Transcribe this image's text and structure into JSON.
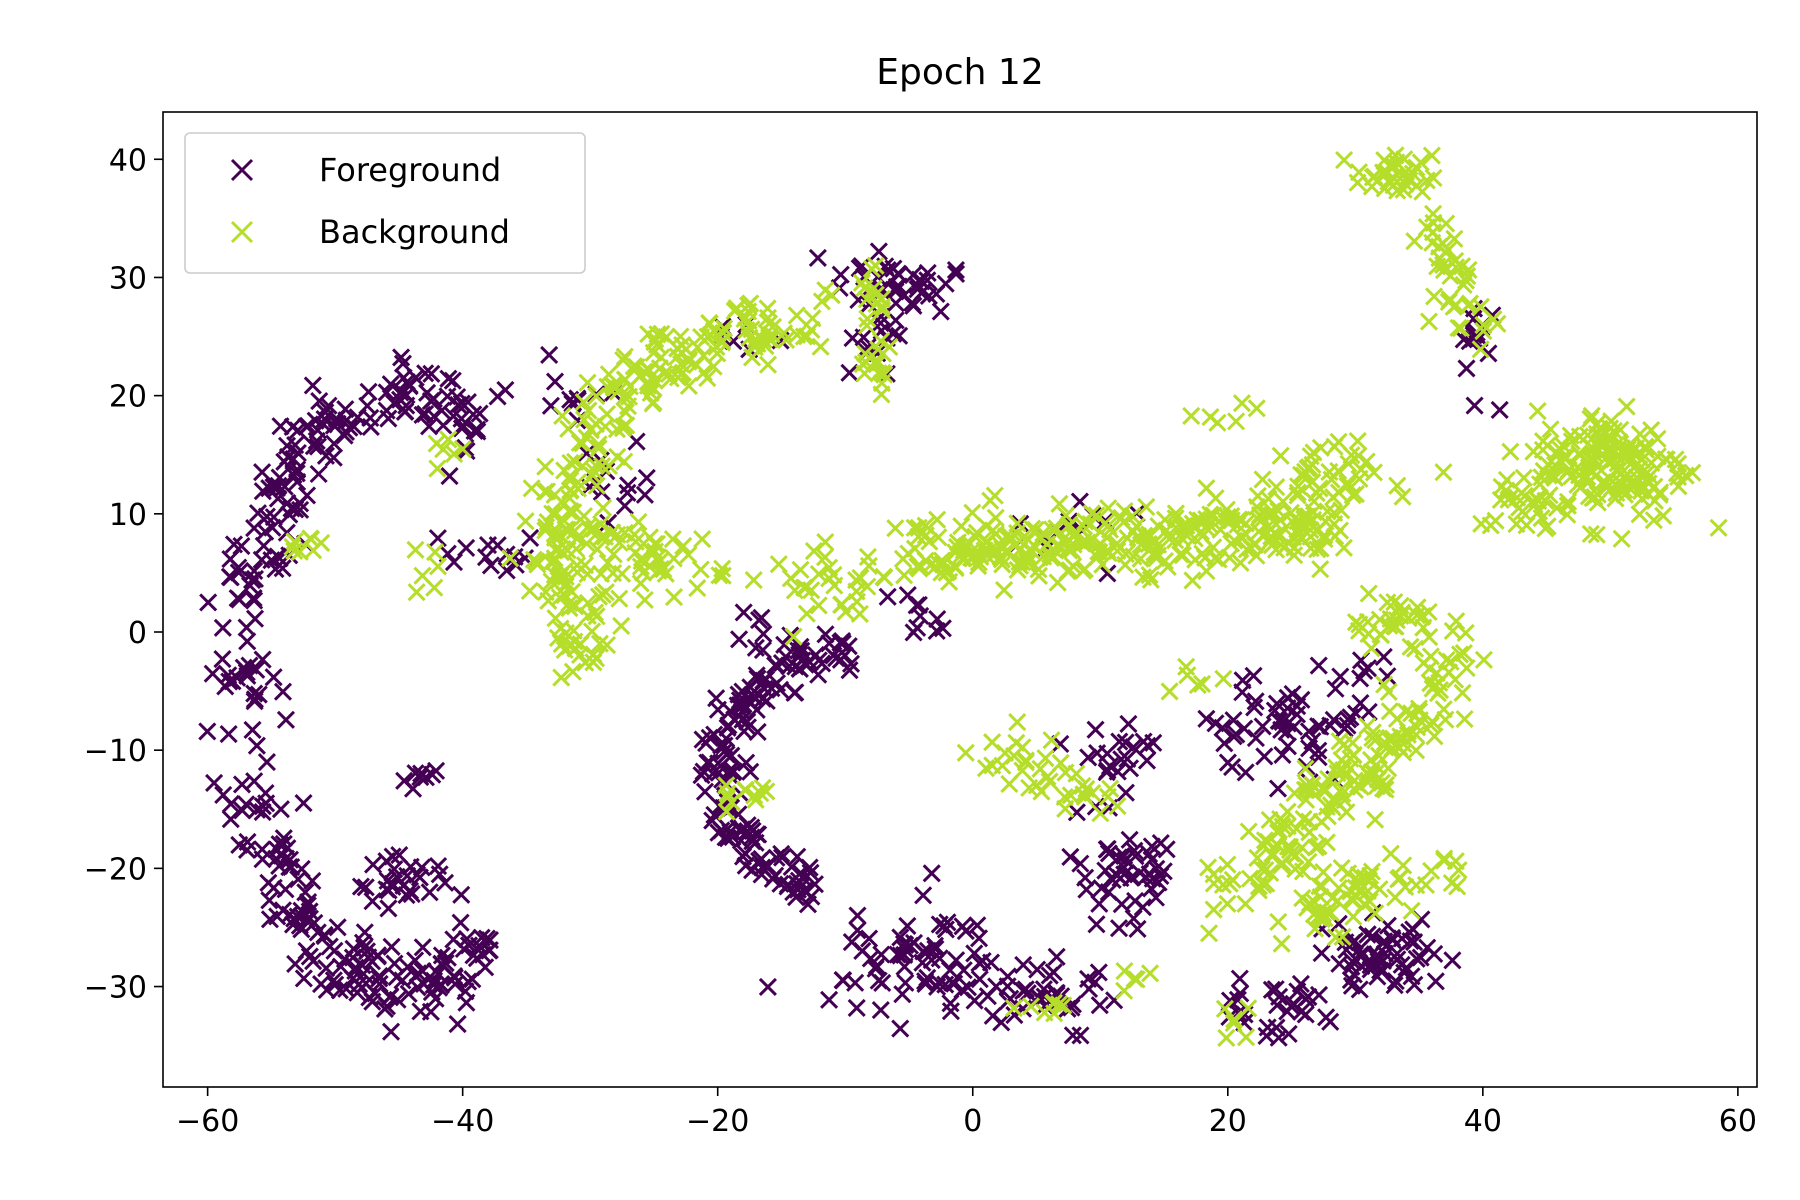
{
  "chart_data": {
    "type": "scatter",
    "title": "Epoch 12",
    "xlabel": "",
    "ylabel": "",
    "xlim": [
      -63.5,
      61.5
    ],
    "ylim": [
      -38.5,
      44
    ],
    "xticks": [
      -60,
      -40,
      -20,
      0,
      20,
      40,
      60
    ],
    "xtick_labels": [
      "−60",
      "−40",
      "−20",
      "0",
      "20",
      "40",
      "60"
    ],
    "yticks": [
      -30,
      -20,
      -10,
      0,
      10,
      20,
      30,
      40
    ],
    "ytick_labels": [
      "−30",
      "−20",
      "−10",
      "0",
      "10",
      "20",
      "30",
      "40"
    ],
    "grid": false,
    "legend_position": "top-left",
    "marker": "x",
    "series": [
      {
        "name": "Foreground",
        "color": "#440154",
        "clusters": [
          {
            "kind": "arc",
            "cx": -44.5,
            "cy": -5,
            "rx": 13,
            "ry": 25,
            "a0": 62,
            "a1": 302,
            "width": 2.8,
            "n": 330
          },
          {
            "kind": "blob",
            "cx": -45,
            "cy": -21,
            "rx": 3.5,
            "ry": 2,
            "n": 30
          },
          {
            "kind": "blob",
            "cx": -43,
            "cy": -12,
            "rx": 1.2,
            "ry": 1.2,
            "n": 8
          },
          {
            "kind": "blob",
            "cx": -38,
            "cy": 6.5,
            "rx": 2.5,
            "ry": 1.5,
            "n": 14
          },
          {
            "kind": "blob",
            "cx": -31,
            "cy": 19,
            "rx": 2,
            "ry": 4,
            "n": 12
          },
          {
            "kind": "blob",
            "cx": -6,
            "cy": 29.5,
            "rx": 4,
            "ry": 2,
            "n": 40
          },
          {
            "kind": "blob",
            "cx": -7,
            "cy": 25,
            "rx": 4,
            "ry": 2.5,
            "n": 14
          },
          {
            "kind": "blob",
            "cx": -19,
            "cy": 25,
            "rx": 2,
            "ry": 1.5,
            "n": 6
          },
          {
            "kind": "arc",
            "cx": -6,
            "cy": -12,
            "rx": 14,
            "ry": 11,
            "a0": 105,
            "a1": 245,
            "width": 1.7,
            "n": 160
          },
          {
            "kind": "blob",
            "cx": -4,
            "cy": -28,
            "rx": 5,
            "ry": 4,
            "n": 70
          },
          {
            "kind": "blob",
            "cx": 5,
            "cy": -31,
            "rx": 5,
            "ry": 2.5,
            "n": 40
          },
          {
            "kind": "blob",
            "cx": 12,
            "cy": -20,
            "rx": 4,
            "ry": 5,
            "n": 50
          },
          {
            "kind": "blob",
            "cx": 12,
            "cy": -10,
            "rx": 3,
            "ry": 2.5,
            "n": 20
          },
          {
            "kind": "blob",
            "cx": 24,
            "cy": -8,
            "rx": 5,
            "ry": 3,
            "n": 50
          },
          {
            "kind": "blob",
            "cx": 32,
            "cy": -28,
            "rx": 4,
            "ry": 3,
            "n": 60
          },
          {
            "kind": "blob",
            "cx": 24,
            "cy": -32,
            "rx": 3.5,
            "ry": 2,
            "n": 30
          },
          {
            "kind": "blob",
            "cx": 30,
            "cy": -5,
            "rx": 3,
            "ry": 2.5,
            "n": 15
          },
          {
            "kind": "blob",
            "cx": -4,
            "cy": 1,
            "rx": 2,
            "ry": 2.5,
            "n": 10
          },
          {
            "kind": "blob",
            "cx": 39.5,
            "cy": 24,
            "rx": 1.5,
            "ry": 4,
            "n": 15
          },
          {
            "kind": "blob",
            "cx": -18,
            "cy": 0,
            "rx": 2.5,
            "ry": 2,
            "n": 8
          },
          {
            "kind": "blob",
            "cx": 8,
            "cy": 9,
            "rx": 5,
            "ry": 3,
            "n": 12
          },
          {
            "kind": "blob",
            "cx": -29,
            "cy": 13,
            "rx": 3,
            "ry": 3,
            "n": 12
          }
        ]
      },
      {
        "name": "Background",
        "color": "#b5de2b",
        "clusters": [
          {
            "kind": "arc",
            "cx": -14,
            "cy": 7,
            "rx": 18,
            "ry": 19,
            "a0": 95,
            "a1": 210,
            "width": 2.8,
            "n": 230
          },
          {
            "kind": "blob",
            "cx": -25,
            "cy": 6,
            "rx": 5,
            "ry": 2.5,
            "n": 50
          },
          {
            "kind": "blob",
            "cx": -11,
            "cy": 4,
            "rx": 4,
            "ry": 2.5,
            "n": 30
          },
          {
            "kind": "band",
            "x0": -4,
            "x1": 28,
            "y0": 6.5,
            "y1": 9,
            "spread": 2.8,
            "n": 300
          },
          {
            "kind": "blob",
            "cx": 27,
            "cy": 13,
            "rx": 4,
            "ry": 2.5,
            "n": 40
          },
          {
            "kind": "blob",
            "cx": 20,
            "cy": 18.5,
            "rx": 2,
            "ry": 1.2,
            "n": 6
          },
          {
            "kind": "blob",
            "cx": 33,
            "cy": 38.5,
            "rx": 2.5,
            "ry": 1.5,
            "n": 35
          },
          {
            "kind": "band",
            "x0": 36,
            "x1": 40,
            "y0": 35,
            "y1": 24,
            "spread": 1.5,
            "n": 40
          },
          {
            "kind": "blob",
            "cx": 50,
            "cy": 14,
            "rx": 5,
            "ry": 4,
            "n": 160
          },
          {
            "kind": "blob",
            "cx": 43,
            "cy": 11,
            "rx": 3,
            "ry": 2,
            "n": 25
          },
          {
            "kind": "band",
            "x0": 20,
            "x1": 36,
            "y0": -22,
            "y1": -6,
            "spread": 3,
            "n": 150
          },
          {
            "kind": "blob",
            "cx": 33,
            "cy": 1,
            "rx": 3,
            "ry": 2,
            "n": 30
          },
          {
            "kind": "blob",
            "cx": 37,
            "cy": -3,
            "rx": 2.5,
            "ry": 3,
            "n": 20
          },
          {
            "kind": "blob",
            "cx": 33,
            "cy": -21,
            "rx": 5,
            "ry": 1.5,
            "n": 30
          },
          {
            "kind": "blob",
            "cx": 28,
            "cy": -24,
            "rx": 3,
            "ry": 2,
            "n": 30
          },
          {
            "kind": "blob",
            "cx": 4,
            "cy": -11,
            "rx": 3,
            "ry": 2,
            "n": 25
          },
          {
            "kind": "blob",
            "cx": 9,
            "cy": -14,
            "rx": 3,
            "ry": 1.5,
            "n": 12
          },
          {
            "kind": "blob",
            "cx": -7.5,
            "cy": 22.5,
            "rx": 1.5,
            "ry": 2,
            "n": 15
          },
          {
            "kind": "blob",
            "cx": -8,
            "cy": 28,
            "rx": 2,
            "ry": 2,
            "n": 15
          },
          {
            "kind": "blob",
            "cx": -14,
            "cy": 25,
            "rx": 3,
            "ry": 1.5,
            "n": 15
          },
          {
            "kind": "blob",
            "cx": -18,
            "cy": -14,
            "rx": 2.5,
            "ry": 1,
            "n": 12
          },
          {
            "kind": "blob",
            "cx": -52.5,
            "cy": 7.5,
            "rx": 1.5,
            "ry": 1.2,
            "n": 8
          },
          {
            "kind": "blob",
            "cx": -41,
            "cy": 15.5,
            "rx": 1.5,
            "ry": 2,
            "n": 6
          },
          {
            "kind": "blob",
            "cx": 6,
            "cy": -32,
            "rx": 2,
            "ry": 1,
            "n": 8
          },
          {
            "kind": "blob",
            "cx": 21,
            "cy": -33,
            "rx": 1.5,
            "ry": 1.5,
            "n": 6
          },
          {
            "kind": "blob",
            "cx": 12,
            "cy": -29,
            "rx": 1.5,
            "ry": 1,
            "n": 5
          },
          {
            "kind": "blob",
            "cx": 18,
            "cy": -4,
            "rx": 2,
            "ry": 1,
            "n": 6
          },
          {
            "kind": "blob",
            "cx": -43,
            "cy": 5,
            "rx": 1.5,
            "ry": 4,
            "n": 6
          }
        ]
      }
    ]
  }
}
